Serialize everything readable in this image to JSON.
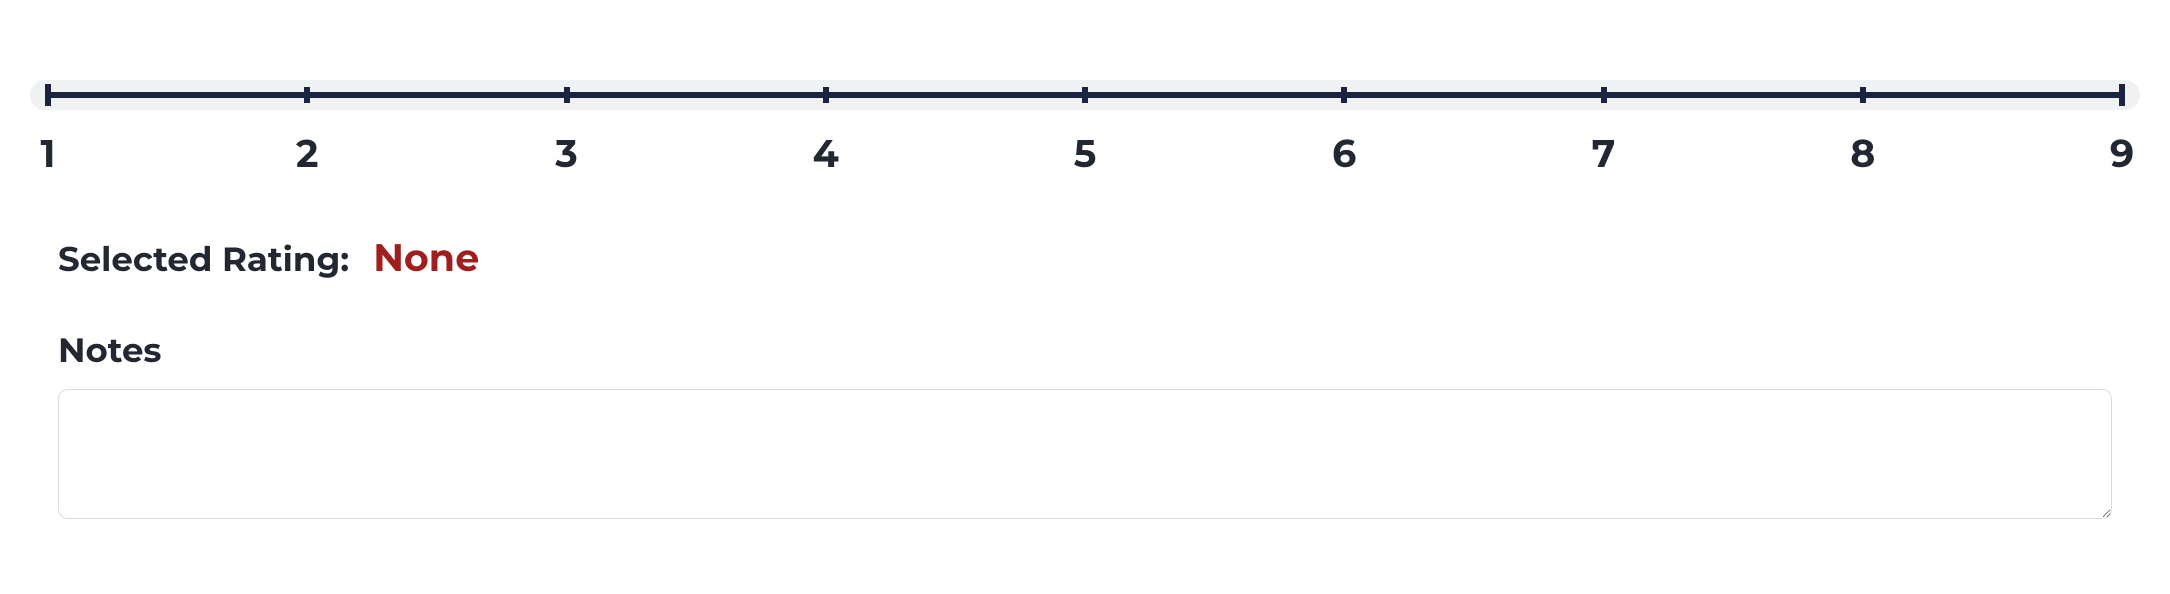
{
  "slider": {
    "min": 1,
    "max": 9,
    "ticks": [
      {
        "value": "1",
        "pos": 0
      },
      {
        "value": "2",
        "pos": 12.5
      },
      {
        "value": "3",
        "pos": 25
      },
      {
        "value": "4",
        "pos": 37.5
      },
      {
        "value": "5",
        "pos": 50
      },
      {
        "value": "6",
        "pos": 62.5
      },
      {
        "value": "7",
        "pos": 75
      },
      {
        "value": "8",
        "pos": 87.5
      },
      {
        "value": "9",
        "pos": 100
      }
    ],
    "track_color": "#1a2440",
    "track_bg": "#f0f1f3",
    "label_color": "#222831",
    "label_fontsize": 38
  },
  "selected": {
    "label": "Selected Rating:",
    "value": "None",
    "value_color": "#a01e1e"
  },
  "notes": {
    "label": "Notes",
    "value": "",
    "placeholder": ""
  }
}
